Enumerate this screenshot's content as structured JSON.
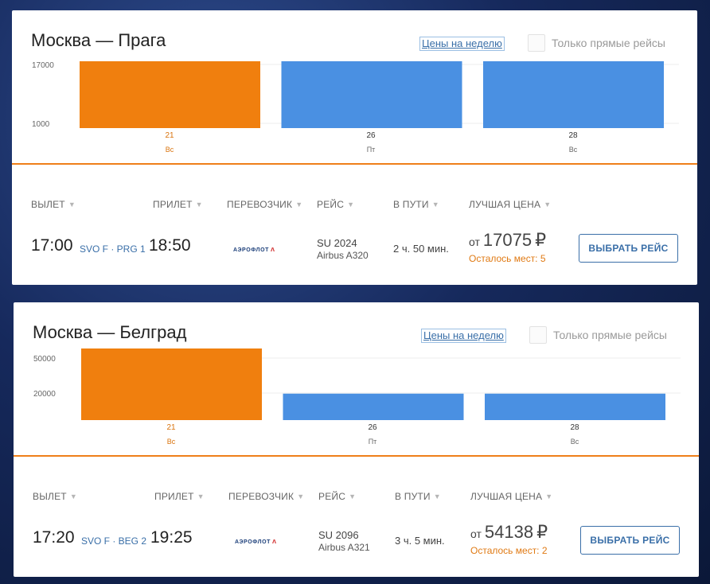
{
  "colors": {
    "selected_bar": "#f07f0e",
    "bar": "#4a90e2",
    "accent_orange": "#ef7f1a",
    "link_blue": "#3a6fa8"
  },
  "columns": {
    "departure": "ВЫЛЕТ",
    "arrival": "ПРИЛЕТ",
    "carrier": "ПЕРЕВОЗЧИК",
    "flight": "РЕЙС",
    "duration": "В ПУТИ",
    "best_price": "ЛУЧШАЯ ЦЕНА"
  },
  "week_link": "Цены на неделю",
  "direct_only_label": "Только прямые рейсы",
  "select_button_label": "ВЫБРАТЬ РЕЙС",
  "price_from_label": "от",
  "currency": "₽",
  "airline_logo_text": "АЭРОФЛОТ",
  "routes": [
    {
      "title": "Москва — Прага",
      "departure_time": "17:00",
      "airports": "SVO F · PRG 1",
      "arrival_time": "18:50",
      "flight_number": "SU 2024",
      "aircraft": "Airbus A320",
      "duration": "2 ч. 50 мин.",
      "price": "17075",
      "seats_left": "Осталось мест: 5",
      "chart_data": {
        "type": "bar",
        "y_ticks": [
          "17000",
          "1000"
        ],
        "categories": [
          {
            "day": "21",
            "weekday": "Вс",
            "selected": true
          },
          {
            "day": "26",
            "weekday": "Пт",
            "selected": false
          },
          {
            "day": "28",
            "weekday": "Вс",
            "selected": false
          }
        ],
        "values": [
          17075,
          17075,
          17075
        ]
      }
    },
    {
      "title": "Москва — Белград",
      "departure_time": "17:20",
      "airports": "SVO F · BEG 2",
      "arrival_time": "19:25",
      "flight_number": "SU 2096",
      "aircraft": "Airbus A321",
      "duration": "3 ч. 5 мин.",
      "price": "54138",
      "seats_left": "Осталось мест: 2",
      "chart_data": {
        "type": "bar",
        "y_ticks": [
          "50000",
          "20000"
        ],
        "categories": [
          {
            "day": "21",
            "weekday": "Вс",
            "selected": true
          },
          {
            "day": "26",
            "weekday": "Пт",
            "selected": false
          },
          {
            "day": "28",
            "weekday": "Вс",
            "selected": false
          }
        ],
        "values": [
          54138,
          20000,
          20000
        ]
      }
    }
  ]
}
